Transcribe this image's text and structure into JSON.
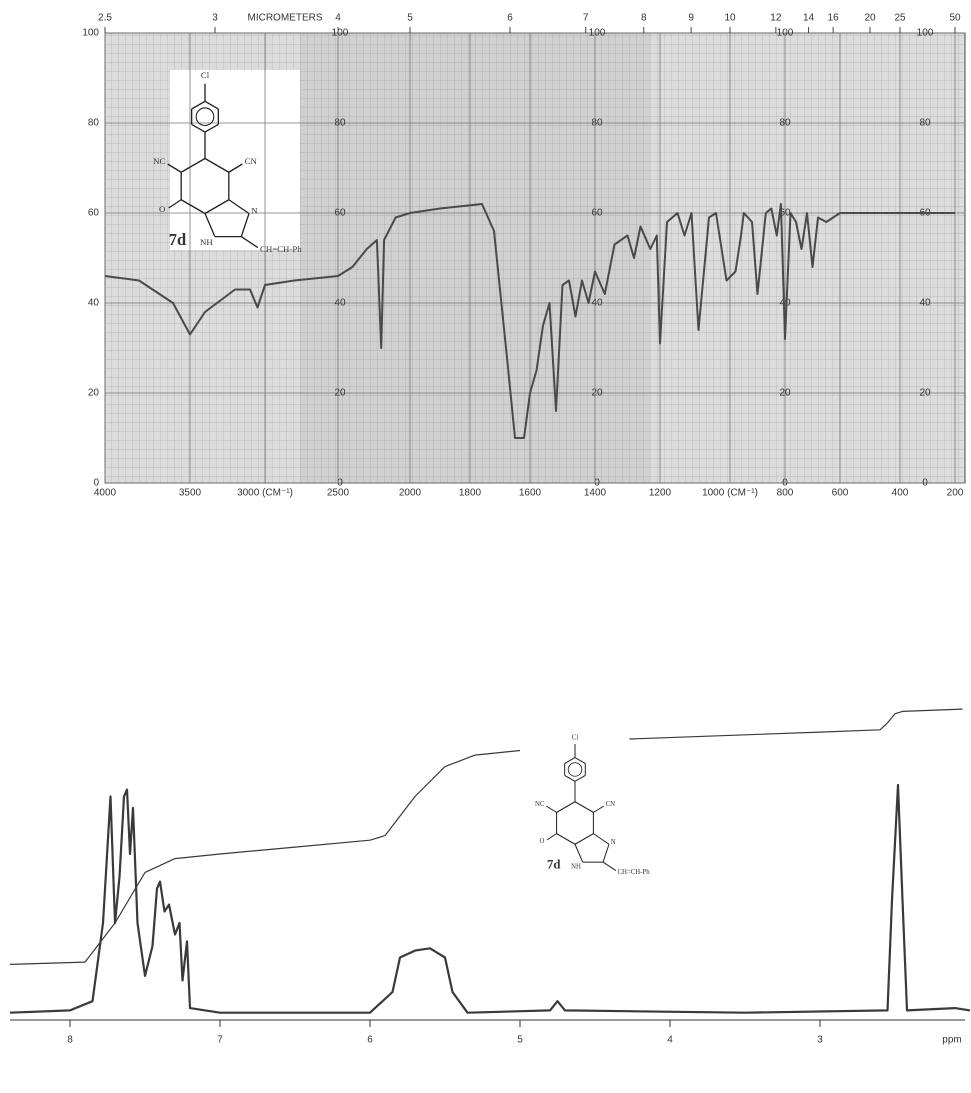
{
  "chart_data": [
    {
      "type": "line",
      "panel": "ir",
      "x2label": "MICROMETERS",
      "x2ticks": [
        2.5,
        3,
        4,
        5,
        6,
        7,
        8,
        9,
        10,
        12,
        14,
        16,
        20,
        25,
        50
      ],
      "xlim": [
        4000,
        200
      ],
      "xticks": [
        4000,
        3500,
        {
          "value": 3000,
          "label": "3000 (CM⁻¹)"
        },
        2500,
        2000,
        1800,
        1600,
        1400,
        1200,
        {
          "value": 1000,
          "label": "1000 (CM⁻¹)"
        },
        800,
        600,
        400,
        200
      ],
      "ylim": [
        0,
        100
      ],
      "yticks": [
        0,
        20,
        40,
        60,
        80,
        100
      ],
      "grid": true,
      "color": "#4a4a4a",
      "x": [
        4000,
        3800,
        3600,
        3500,
        3400,
        3200,
        3100,
        3050,
        3000,
        2800,
        2500,
        2400,
        2300,
        2230,
        2200,
        2180,
        2100,
        2000,
        1900,
        1760,
        1720,
        1680,
        1650,
        1620,
        1600,
        1580,
        1560,
        1540,
        1520,
        1500,
        1480,
        1460,
        1440,
        1420,
        1400,
        1370,
        1340,
        1300,
        1280,
        1260,
        1230,
        1210,
        1200,
        1180,
        1150,
        1130,
        1110,
        1090,
        1060,
        1040,
        1010,
        980,
        960,
        950,
        920,
        900,
        870,
        850,
        830,
        815,
        800,
        780,
        760,
        740,
        720,
        700,
        680,
        650,
        600,
        400,
        200
      ],
      "values": [
        46,
        45,
        40,
        33,
        38,
        43,
        43,
        39,
        44,
        45,
        46,
        48,
        52,
        54,
        30,
        54,
        59,
        60,
        61,
        62,
        56,
        30,
        10,
        10,
        20,
        25,
        35,
        40,
        16,
        44,
        45,
        37,
        45,
        40,
        47,
        42,
        53,
        55,
        50,
        57,
        52,
        55,
        31,
        58,
        60,
        55,
        60,
        34,
        59,
        60,
        45,
        47,
        55,
        60,
        58,
        42,
        60,
        61,
        55,
        62,
        32,
        60,
        58,
        52,
        60,
        48,
        59,
        58,
        60,
        60,
        60
      ],
      "structure": {
        "cl": "Cl",
        "nc": "NC",
        "cn": "CN",
        "o": "O",
        "n": "N",
        "nh": "NH",
        "substituent": "CH=CH-Ph",
        "compound": "7d"
      }
    },
    {
      "type": "line",
      "panel": "nmr",
      "xlim": [
        8.4,
        2.0
      ],
      "xticks": [
        8,
        7,
        6,
        5,
        4,
        3
      ],
      "x_unit": "ppm",
      "ylim": [
        0,
        135
      ],
      "series": [
        {
          "color": "#3a3a3a",
          "x": [
            8.4,
            8.0,
            7.85,
            7.78,
            7.73,
            7.7,
            7.67,
            7.64,
            7.62,
            7.6,
            7.58,
            7.55,
            7.5,
            7.45,
            7.42,
            7.4,
            7.37,
            7.34,
            7.3,
            7.27,
            7.25,
            7.22,
            7.2,
            7.0,
            6.0,
            5.85,
            5.8,
            5.7,
            5.6,
            5.55,
            5.5,
            5.45,
            5.35,
            4.8,
            4.75,
            4.7,
            3.5,
            2.55,
            2.52,
            2.48,
            2.45,
            2.42,
            2.1,
            2.0
          ],
          "values": [
            1,
            2,
            6,
            40,
            95,
            40,
            60,
            95,
            98,
            70,
            90,
            40,
            17,
            30,
            55,
            58,
            45,
            48,
            35,
            40,
            15,
            32,
            3,
            1,
            1,
            10,
            25,
            28,
            29,
            27,
            25,
            10,
            1,
            2,
            6,
            2,
            1,
            2,
            50,
            100,
            50,
            2,
            3,
            2
          ]
        },
        {
          "color": "#3a3a3a",
          "x": [
            8.4,
            7.9,
            7.7,
            7.5,
            7.3,
            7.0,
            6.5,
            6.0,
            5.9,
            5.7,
            5.5,
            5.3,
            5.0,
            4.6,
            4.27,
            3.0,
            2.6,
            2.55,
            2.5,
            2.45,
            2.05
          ],
          "values": [
            22,
            23,
            40,
            62,
            68,
            70,
            73,
            76,
            78,
            95,
            108,
            113,
            115,
            null,
            120,
            123,
            124,
            127,
            131,
            132,
            133
          ]
        }
      ],
      "structure": {
        "cl": "Cl",
        "nc": "NC",
        "cn": "CN",
        "o": "O",
        "n": "N",
        "nh": "NH",
        "substituent": "CH=CH-Ph",
        "compound": "7d"
      }
    }
  ]
}
